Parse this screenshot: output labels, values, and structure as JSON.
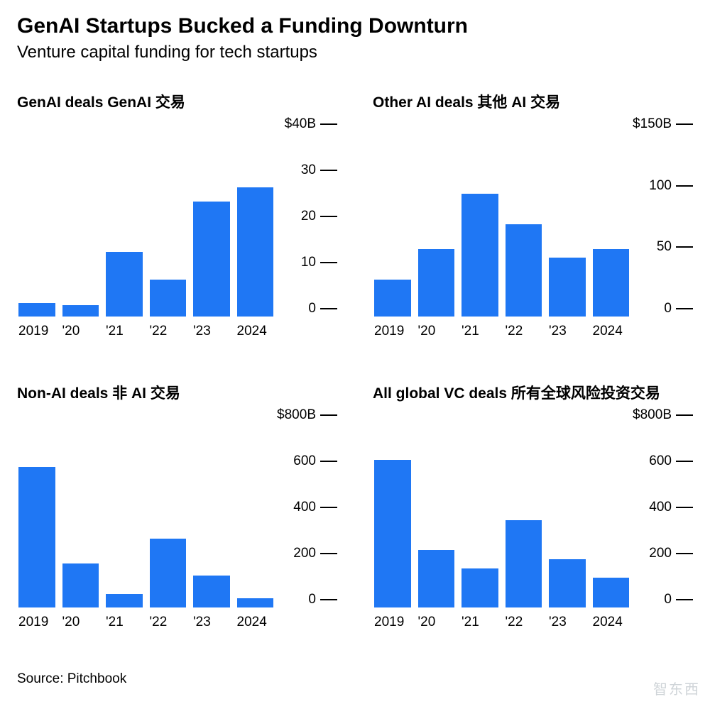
{
  "title": "GenAI Startups Bucked a Funding Downturn",
  "subtitle": "Venture capital funding for tech startups",
  "source": "Source: Pitchbook",
  "watermark": "智东西",
  "bar_color": "#1f77f4",
  "background_color": "#ffffff",
  "tick_mark_color": "#000000",
  "font_family": "-apple-system, Helvetica, Arial, sans-serif",
  "title_fontsize": 30,
  "subtitle_fontsize": 24,
  "panel_title_fontsize": 21,
  "axis_label_fontsize": 19,
  "x_labels": [
    "2019",
    "'20",
    "'21",
    "'22",
    "'23",
    "2024"
  ],
  "panels": [
    {
      "title": "GenAI deals GenAI 交易",
      "type": "bar",
      "ymax": 40,
      "yticks": [
        {
          "value": 40,
          "label": "$40B"
        },
        {
          "value": 30,
          "label": "30"
        },
        {
          "value": 20,
          "label": "20"
        },
        {
          "value": 10,
          "label": "10"
        },
        {
          "value": 0,
          "label": "0"
        }
      ],
      "values": [
        3,
        2.5,
        14,
        8,
        25,
        28
      ]
    },
    {
      "title": "Other AI deals  其他 AI 交易",
      "type": "bar",
      "ymax": 150,
      "yticks": [
        {
          "value": 150,
          "label": "$150B"
        },
        {
          "value": 100,
          "label": "100"
        },
        {
          "value": 50,
          "label": "50"
        },
        {
          "value": 0,
          "label": "0"
        }
      ],
      "values": [
        30,
        55,
        100,
        75,
        48,
        55
      ]
    },
    {
      "title": "Non-AI deals 非 AI 交易",
      "type": "bar",
      "ymax": 800,
      "yticks": [
        {
          "value": 800,
          "label": "$800B"
        },
        {
          "value": 600,
          "label": "600"
        },
        {
          "value": 400,
          "label": "400"
        },
        {
          "value": 200,
          "label": "200"
        },
        {
          "value": 0,
          "label": "0"
        }
      ],
      "values": [
        610,
        190,
        60,
        300,
        140,
        40
      ]
    },
    {
      "title": "All global VC deals 所有全球风险投资交易",
      "type": "bar",
      "ymax": 800,
      "yticks": [
        {
          "value": 800,
          "label": "$800B"
        },
        {
          "value": 600,
          "label": "600"
        },
        {
          "value": 400,
          "label": "400"
        },
        {
          "value": 200,
          "label": "200"
        },
        {
          "value": 0,
          "label": "0"
        }
      ],
      "values": [
        640,
        250,
        170,
        380,
        210,
        130
      ]
    }
  ]
}
